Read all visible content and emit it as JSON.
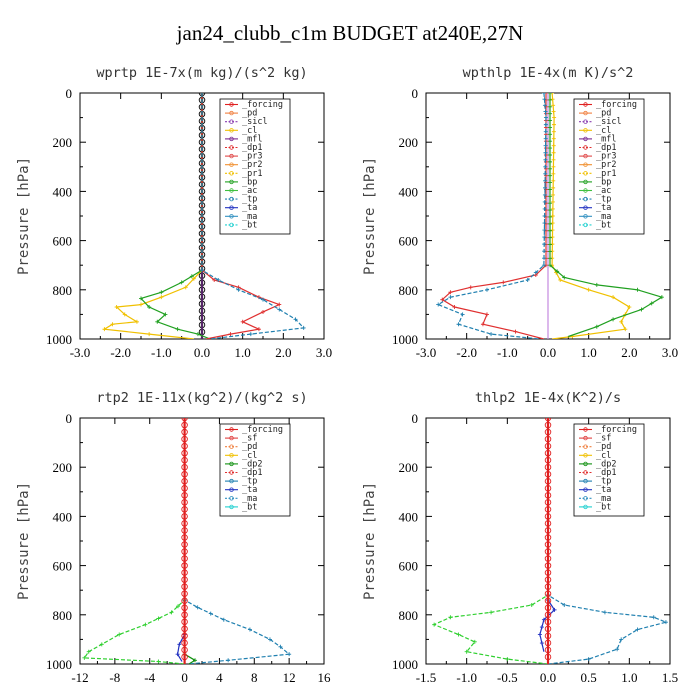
{
  "figure_title": "jan24_clubb_c1m  BUDGET at240E,27N",
  "chart_data": [
    {
      "type": "line",
      "title": "wprtp   1E-7x(m kg)/(s^2 kg)",
      "ylabel": "Pressure [hPa]",
      "xlim": [
        -3.0,
        3.0
      ],
      "ylim": [
        1000,
        0
      ],
      "x_ticks": [
        "-3.0",
        "-2.0",
        "-1.0",
        "0.0",
        "1.0",
        "2.0",
        "3.0"
      ],
      "y_ticks": [
        "0",
        "200",
        "400",
        "600",
        "800",
        "1000"
      ],
      "x_tick_values": [
        -3,
        -2,
        -1,
        0,
        1,
        2,
        3
      ],
      "y_tick_values": [
        0,
        200,
        400,
        600,
        800,
        1000
      ],
      "legend": [
        "_forcing",
        "_pd",
        "_sicl",
        "_cl",
        "_mfl",
        "_dp1",
        "_pr3",
        "_pr2",
        "_pr1",
        "_bp",
        "_ac",
        "_tp",
        "_ta",
        "_ma",
        "_bt"
      ],
      "series": [
        {
          "name": "_forcing",
          "color": "#000000",
          "marker": "o",
          "points": [
            [
              0,
              0
            ],
            [
              0,
              1000
            ]
          ]
        },
        {
          "name": "_pd",
          "color": "#b58fd8",
          "points": [
            [
              0,
              0
            ],
            [
              0,
              1000
            ]
          ]
        },
        {
          "name": "_sicl",
          "color": "#8a3fb0",
          "points": [
            [
              0,
              0
            ],
            [
              0,
              1000
            ]
          ]
        },
        {
          "name": "_cl",
          "color": "#6a2a80",
          "points": [
            [
              0,
              0
            ],
            [
              0,
              1000
            ]
          ]
        },
        {
          "name": "_pr1",
          "color": "#f0c000",
          "points": [
            [
              0,
              0
            ],
            [
              0,
              720
            ],
            [
              -0.4,
              790
            ],
            [
              -1.0,
              830
            ],
            [
              -1.5,
              860
            ],
            [
              -2.1,
              870
            ],
            [
              -1.9,
              900
            ],
            [
              -1.6,
              930
            ],
            [
              -2.2,
              940
            ],
            [
              -2.4,
              960
            ],
            [
              -1.3,
              980
            ],
            [
              -0.2,
              1000
            ]
          ]
        },
        {
          "name": "_bp",
          "color": "#20a020",
          "points": [
            [
              0,
              0
            ],
            [
              0,
              720
            ],
            [
              -0.5,
              770
            ],
            [
              -1.0,
              810
            ],
            [
              -1.5,
              835
            ],
            [
              -1.3,
              870
            ],
            [
              -0.9,
              900
            ],
            [
              -1.1,
              930
            ],
            [
              -0.6,
              960
            ],
            [
              -0.1,
              980
            ],
            [
              0.2,
              1000
            ]
          ]
        },
        {
          "name": "_dp1",
          "color": "#e03030",
          "points": [
            [
              0,
              0
            ],
            [
              0,
              720
            ],
            [
              0.3,
              760
            ],
            [
              0.9,
              790
            ],
            [
              1.4,
              830
            ],
            [
              1.9,
              860
            ],
            [
              1.5,
              890
            ],
            [
              1.0,
              930
            ],
            [
              1.4,
              960
            ],
            [
              0.7,
              980
            ],
            [
              0.1,
              1000
            ]
          ]
        },
        {
          "name": "_tp",
          "color": "#2080b0",
          "points": [
            [
              0,
              0
            ],
            [
              0,
              720
            ],
            [
              0.4,
              760
            ],
            [
              0.9,
              800
            ],
            [
              1.5,
              840
            ],
            [
              1.9,
              880
            ],
            [
              2.3,
              920
            ],
            [
              2.5,
              955
            ],
            [
              1.2,
              980
            ],
            [
              0.2,
              1000
            ]
          ]
        }
      ]
    },
    {
      "type": "line",
      "title": "wpthlp   1E-4x(m K)/s^2",
      "ylabel": "Pressure [hPa]",
      "xlim": [
        -3.0,
        3.0
      ],
      "ylim": [
        1000,
        0
      ],
      "x_ticks": [
        "-3.0",
        "-2.0",
        "-1.0",
        "0.0",
        "1.0",
        "2.0",
        "3.0"
      ],
      "y_ticks": [
        "0",
        "200",
        "400",
        "600",
        "800",
        "1000"
      ],
      "x_tick_values": [
        -3,
        -2,
        -1,
        0,
        1,
        2,
        3
      ],
      "y_tick_values": [
        0,
        200,
        400,
        600,
        800,
        1000
      ],
      "legend": [
        "_forcing",
        "_pd",
        "_sicl",
        "_cl",
        "_mfl",
        "_dp1",
        "_pr3",
        "_pr2",
        "_pr1",
        "_bp",
        "_ac",
        "_tp",
        "_ta",
        "_ma",
        "_bt"
      ],
      "series": [
        {
          "name": "_forcing",
          "color": "#c48ae0",
          "points": [
            [
              0,
              0
            ],
            [
              0,
              1000
            ]
          ]
        },
        {
          "name": "_cl",
          "color": "#f0c000",
          "points": [
            [
              0.1,
              0
            ],
            [
              0.15,
              100
            ],
            [
              0.1,
              700
            ],
            [
              0.3,
              760
            ],
            [
              1.0,
              800
            ],
            [
              1.6,
              830
            ],
            [
              2.0,
              870
            ],
            [
              1.8,
              930
            ],
            [
              1.9,
              960
            ],
            [
              0.6,
              990
            ],
            [
              0.1,
              1000
            ]
          ]
        },
        {
          "name": "_bp",
          "color": "#20a020",
          "points": [
            [
              0.05,
              0
            ],
            [
              0.05,
              700
            ],
            [
              0.4,
              750
            ],
            [
              1.2,
              780
            ],
            [
              2.2,
              800
            ],
            [
              2.8,
              830
            ],
            [
              2.3,
              880
            ],
            [
              1.6,
              920
            ],
            [
              1.2,
              950
            ],
            [
              0.5,
              990
            ]
          ]
        },
        {
          "name": "_dp1",
          "color": "#e03030",
          "points": [
            [
              -0.05,
              0
            ],
            [
              -0.05,
              700
            ],
            [
              -0.3,
              740
            ],
            [
              -1.1,
              770
            ],
            [
              -1.9,
              790
            ],
            [
              -2.4,
              810
            ],
            [
              -2.6,
              840
            ],
            [
              -2.3,
              870
            ],
            [
              -1.5,
              900
            ],
            [
              -1.6,
              940
            ],
            [
              -0.8,
              970
            ],
            [
              -0.1,
              1000
            ]
          ]
        },
        {
          "name": "_tp",
          "color": "#2080b0",
          "points": [
            [
              -0.1,
              0
            ],
            [
              -0.05,
              100
            ],
            [
              -0.1,
              700
            ],
            [
              -0.5,
              760
            ],
            [
              -1.5,
              800
            ],
            [
              -2.4,
              830
            ],
            [
              -2.7,
              860
            ],
            [
              -2.1,
              900
            ],
            [
              -2.2,
              940
            ],
            [
              -1.4,
              980
            ],
            [
              -0.2,
              1000
            ]
          ]
        }
      ]
    },
    {
      "type": "line",
      "title": "rtp2   1E-11x(kg^2)/(kg^2 s)",
      "ylabel": "Pressure [hPa]",
      "xlim": [
        -12,
        16
      ],
      "ylim": [
        1000,
        0
      ],
      "x_ticks": [
        "-12",
        "-8",
        "-4",
        "0",
        "4",
        "8",
        "12",
        "16"
      ],
      "y_ticks": [
        "0",
        "200",
        "400",
        "600",
        "800",
        "1000"
      ],
      "x_tick_values": [
        -12,
        -8,
        -4,
        0,
        4,
        8,
        12,
        16
      ],
      "y_tick_values": [
        0,
        200,
        400,
        600,
        800,
        1000
      ],
      "legend": [
        "_forcing",
        "_sf",
        "_pd",
        "_cl",
        "_dp2",
        "_dp1",
        "_tp",
        "_ta",
        "_ma",
        "_bt"
      ],
      "series": [
        {
          "name": "_dp1",
          "color": "#30d030",
          "points": [
            [
              0,
              0
            ],
            [
              0,
              740
            ],
            [
              -1.5,
              790
            ],
            [
              -4.5,
              840
            ],
            [
              -7.5,
              880
            ],
            [
              -9.5,
              920
            ],
            [
              -11.0,
              950
            ],
            [
              -11.5,
              975
            ],
            [
              -3.0,
              990
            ],
            [
              0,
              1000
            ]
          ]
        },
        {
          "name": "_tp",
          "color": "#2080b0",
          "points": [
            [
              0,
              0
            ],
            [
              0,
              740
            ],
            [
              1.5,
              770
            ],
            [
              4.5,
              820
            ],
            [
              7.5,
              860
            ],
            [
              9.8,
              900
            ],
            [
              11.0,
              930
            ],
            [
              12.0,
              960
            ],
            [
              5.0,
              985
            ],
            [
              0.5,
              1000
            ]
          ]
        },
        {
          "name": "_ta",
          "color": "#2030c0",
          "points": [
            [
              0,
              0
            ],
            [
              0,
              880
            ],
            [
              -0.6,
              920
            ],
            [
              -0.8,
              960
            ],
            [
              -0.3,
              990
            ]
          ]
        },
        {
          "name": "_dp2",
          "color": "#109010",
          "points": [
            [
              0,
              960
            ],
            [
              1.2,
              985
            ],
            [
              0.5,
              1000
            ]
          ]
        },
        {
          "name": "_forcing",
          "color": "#e02020",
          "marker": "o",
          "points": [
            [
              0,
              0
            ],
            [
              0,
              1000
            ]
          ]
        }
      ]
    },
    {
      "type": "line",
      "title": "thlp2   1E-4x(K^2)/s",
      "ylabel": "Pressure [hPa]",
      "xlim": [
        -1.5,
        1.5
      ],
      "ylim": [
        1000,
        0
      ],
      "x_ticks": [
        "-1.5",
        "-1.0",
        "-0.5",
        "0.0",
        "0.5",
        "1.0",
        "1.5"
      ],
      "y_ticks": [
        "0",
        "200",
        "400",
        "600",
        "800",
        "1000"
      ],
      "x_tick_values": [
        -1.5,
        -1.0,
        -0.5,
        0,
        0.5,
        1.0,
        1.5
      ],
      "y_tick_values": [
        0,
        200,
        400,
        600,
        800,
        1000
      ],
      "legend": [
        "_forcing",
        "_sf",
        "_pd",
        "_cl",
        "_dp2",
        "_dp1",
        "_tp",
        "_ta",
        "_ma",
        "_bt"
      ],
      "series": [
        {
          "name": "_dp1",
          "color": "#30d030",
          "points": [
            [
              0,
              0
            ],
            [
              0,
              720
            ],
            [
              -0.2,
              760
            ],
            [
              -0.7,
              790
            ],
            [
              -1.2,
              810
            ],
            [
              -1.4,
              840
            ],
            [
              -1.1,
              880
            ],
            [
              -0.9,
              910
            ],
            [
              -1.0,
              950
            ],
            [
              -0.5,
              980
            ],
            [
              0,
              1000
            ]
          ]
        },
        {
          "name": "_tp",
          "color": "#2080b0",
          "points": [
            [
              0,
              0
            ],
            [
              0,
              720
            ],
            [
              0.2,
              760
            ],
            [
              0.7,
              790
            ],
            [
              1.3,
              810
            ],
            [
              1.45,
              830
            ],
            [
              1.1,
              860
            ],
            [
              0.9,
              900
            ],
            [
              0.85,
              940
            ],
            [
              0.5,
              980
            ],
            [
              0,
              1000
            ]
          ]
        },
        {
          "name": "_ta",
          "color": "#2030c0",
          "points": [
            [
              0,
              740
            ],
            [
              0.08,
              780
            ],
            [
              -0.05,
              820
            ],
            [
              -0.1,
              880
            ],
            [
              -0.05,
              950
            ]
          ]
        },
        {
          "name": "_forcing",
          "color": "#e02020",
          "marker": "o",
          "points": [
            [
              0,
              0
            ],
            [
              0,
              1000
            ]
          ]
        }
      ]
    }
  ]
}
